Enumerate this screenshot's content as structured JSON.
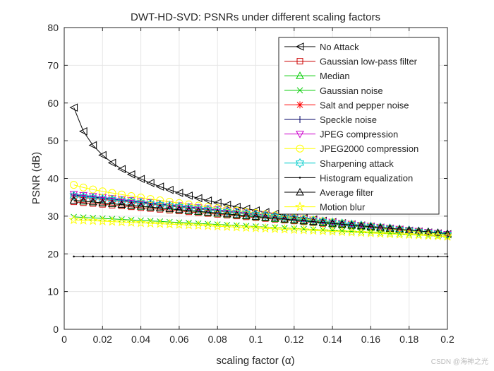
{
  "chart_data": {
    "type": "line",
    "title": "DWT-HD-SVD: PSNRs under different scaling factors",
    "xlabel": "scaling factor (α)",
    "ylabel": "PSNR (dB)",
    "xlim": [
      0,
      0.2
    ],
    "ylim": [
      0,
      80
    ],
    "x_ticks": [
      "0",
      "0.02",
      "0.04",
      "0.06",
      "0.08",
      "0.1",
      "0.12",
      "0.14",
      "0.16",
      "0.18",
      "0.2"
    ],
    "y_ticks": [
      "0",
      "10",
      "20",
      "30",
      "40",
      "50",
      "60",
      "70",
      "80"
    ],
    "grid": true,
    "legend_position": "top-right",
    "x": [
      0.005,
      0.2
    ],
    "series": [
      {
        "name": "No Attack",
        "color": "#000000",
        "marker": "triangle-left",
        "start": 58.8,
        "end": 25.2,
        "shape": "log"
      },
      {
        "name": "Gaussian low-pass filter",
        "color": "#cc0000",
        "marker": "square",
        "start": 33.8,
        "end": 25.2,
        "shape": "linear"
      },
      {
        "name": "Median",
        "color": "#00cc00",
        "marker": "triangle-up",
        "start": 34.2,
        "end": 25.2,
        "shape": "linear"
      },
      {
        "name": "Gaussian noise",
        "color": "#00cc00",
        "marker": "x",
        "start": 29.8,
        "end": 24.6,
        "shape": "linear"
      },
      {
        "name": "Salt and pepper noise",
        "color": "#ff0000",
        "marker": "asterisk",
        "start": 35.2,
        "end": 25.2,
        "shape": "linear"
      },
      {
        "name": "Speckle noise",
        "color": "#000066",
        "marker": "plus",
        "start": 35.6,
        "end": 25.2,
        "shape": "linear"
      },
      {
        "name": "JPEG compression",
        "color": "#cc00cc",
        "marker": "triangle-down",
        "start": 35.8,
        "end": 25.2,
        "shape": "linear"
      },
      {
        "name": "JPEG2000 compression",
        "color": "#ffff00",
        "marker": "circle",
        "start": 38.3,
        "end": 25.0,
        "shape": "curve"
      },
      {
        "name": "Sharpening attack",
        "color": "#00cccc",
        "marker": "hexagram",
        "start": 35.4,
        "end": 25.2,
        "shape": "linear"
      },
      {
        "name": "Histogram equalization",
        "color": "#000000",
        "marker": "point",
        "start": 19.3,
        "end": 19.3,
        "shape": "flat"
      },
      {
        "name": "Average filter",
        "color": "#000000",
        "marker": "triangle-up",
        "start": 34.2,
        "end": 25.4,
        "shape": "linear"
      },
      {
        "name": "Motion blur",
        "color": "#ffff00",
        "marker": "pentagram",
        "start": 29.0,
        "end": 24.6,
        "shape": "linear"
      }
    ]
  },
  "watermark": "CSDN @海神之光"
}
